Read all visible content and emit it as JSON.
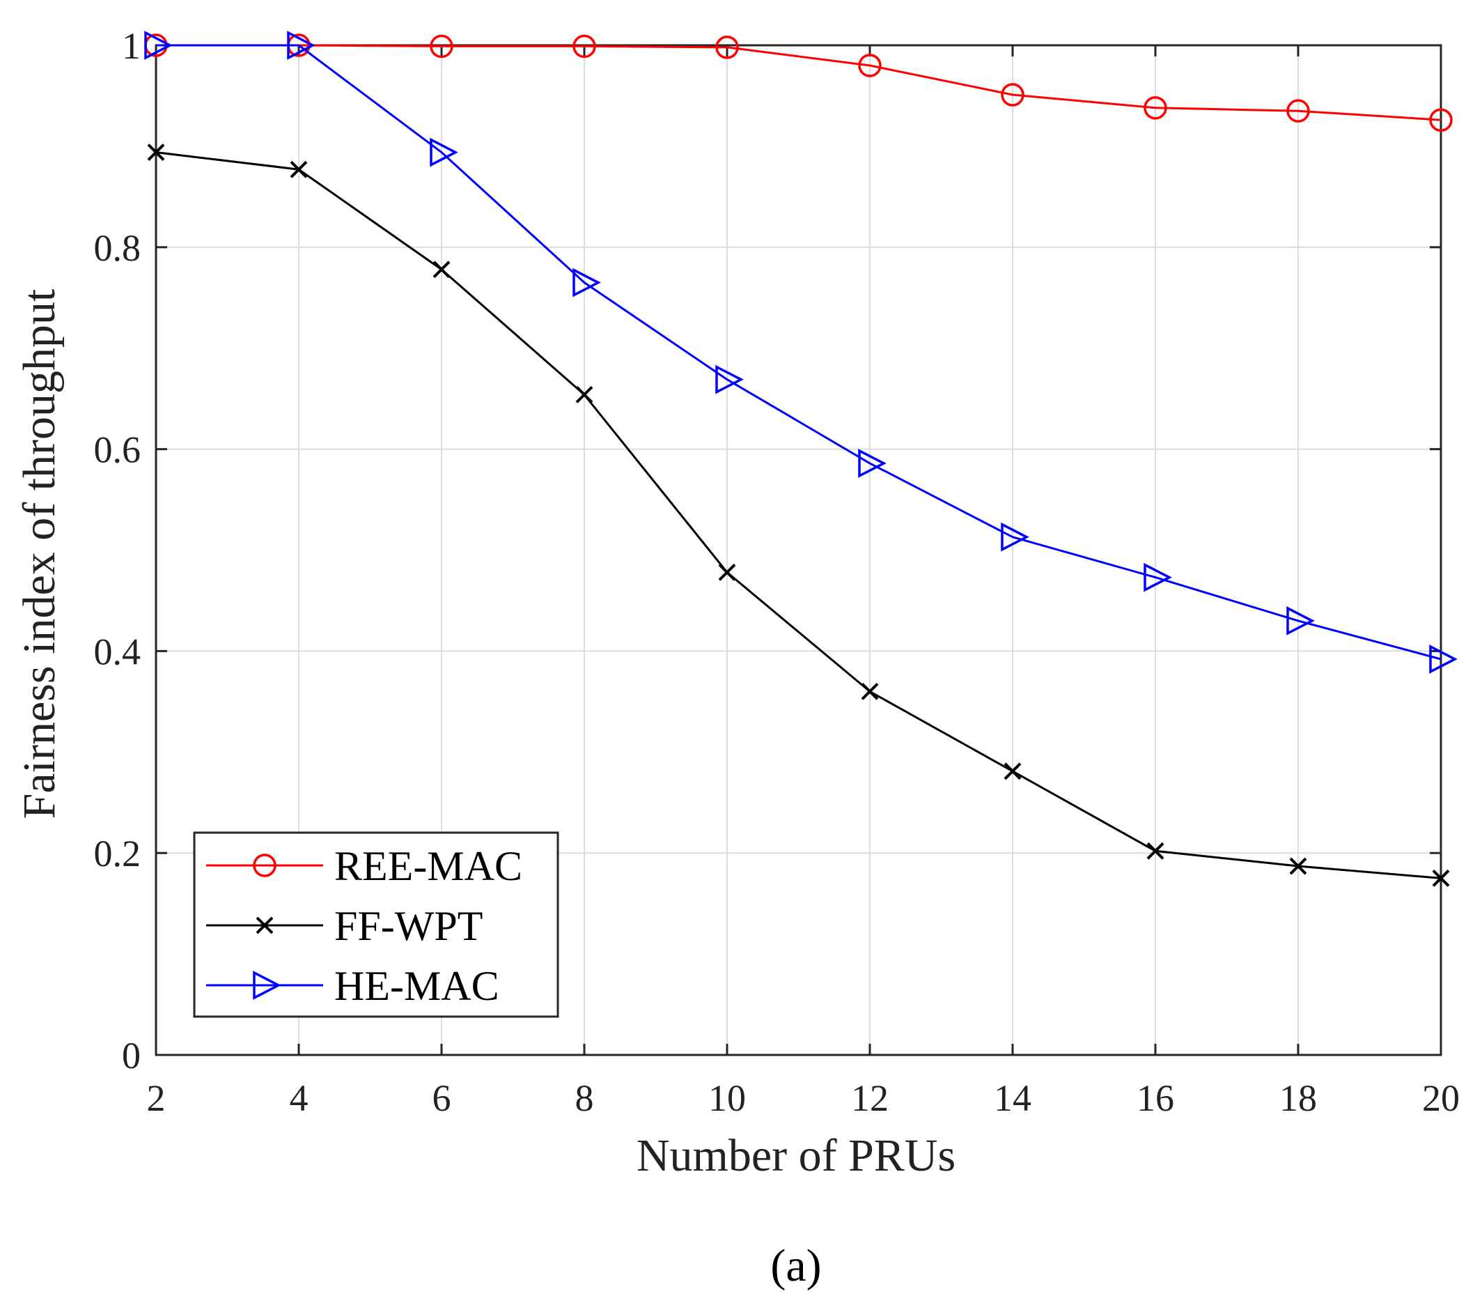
{
  "chart_data": {
    "type": "line",
    "title": "",
    "xlabel": "Number of PRUs",
    "ylabel": "Fairness index of throughput",
    "x": [
      2,
      4,
      6,
      8,
      10,
      12,
      14,
      16,
      18,
      20
    ],
    "xlim": [
      2,
      20
    ],
    "ylim": [
      0,
      1
    ],
    "xticks": [
      2,
      4,
      6,
      8,
      10,
      12,
      14,
      16,
      18,
      20
    ],
    "yticks": [
      0,
      0.2,
      0.4,
      0.6,
      0.8,
      1
    ],
    "xtick_labels": [
      "2",
      "4",
      "6",
      "8",
      "10",
      "12",
      "14",
      "16",
      "18",
      "20"
    ],
    "ytick_labels": [
      "0",
      "0.2",
      "0.4",
      "0.6",
      "0.8",
      "1"
    ],
    "grid": true,
    "legend_position": "bottom-left",
    "series": [
      {
        "name": "REE-MAC",
        "color": "#ff0000",
        "marker": "circle",
        "values": [
          1.0,
          1.0,
          0.999,
          0.999,
          0.998,
          0.98,
          0.951,
          0.938,
          0.935,
          0.926
        ]
      },
      {
        "name": "FF-WPT",
        "color": "#000000",
        "marker": "x",
        "values": [
          0.894,
          0.877,
          0.778,
          0.654,
          0.478,
          0.36,
          0.281,
          0.202,
          0.187,
          0.175
        ]
      },
      {
        "name": "HE-MAC",
        "color": "#0000ff",
        "marker": "triangle-right",
        "values": [
          1.0,
          1.0,
          0.894,
          0.765,
          0.669,
          0.586,
          0.513,
          0.473,
          0.43,
          0.392
        ]
      }
    ]
  },
  "caption": "(a)"
}
